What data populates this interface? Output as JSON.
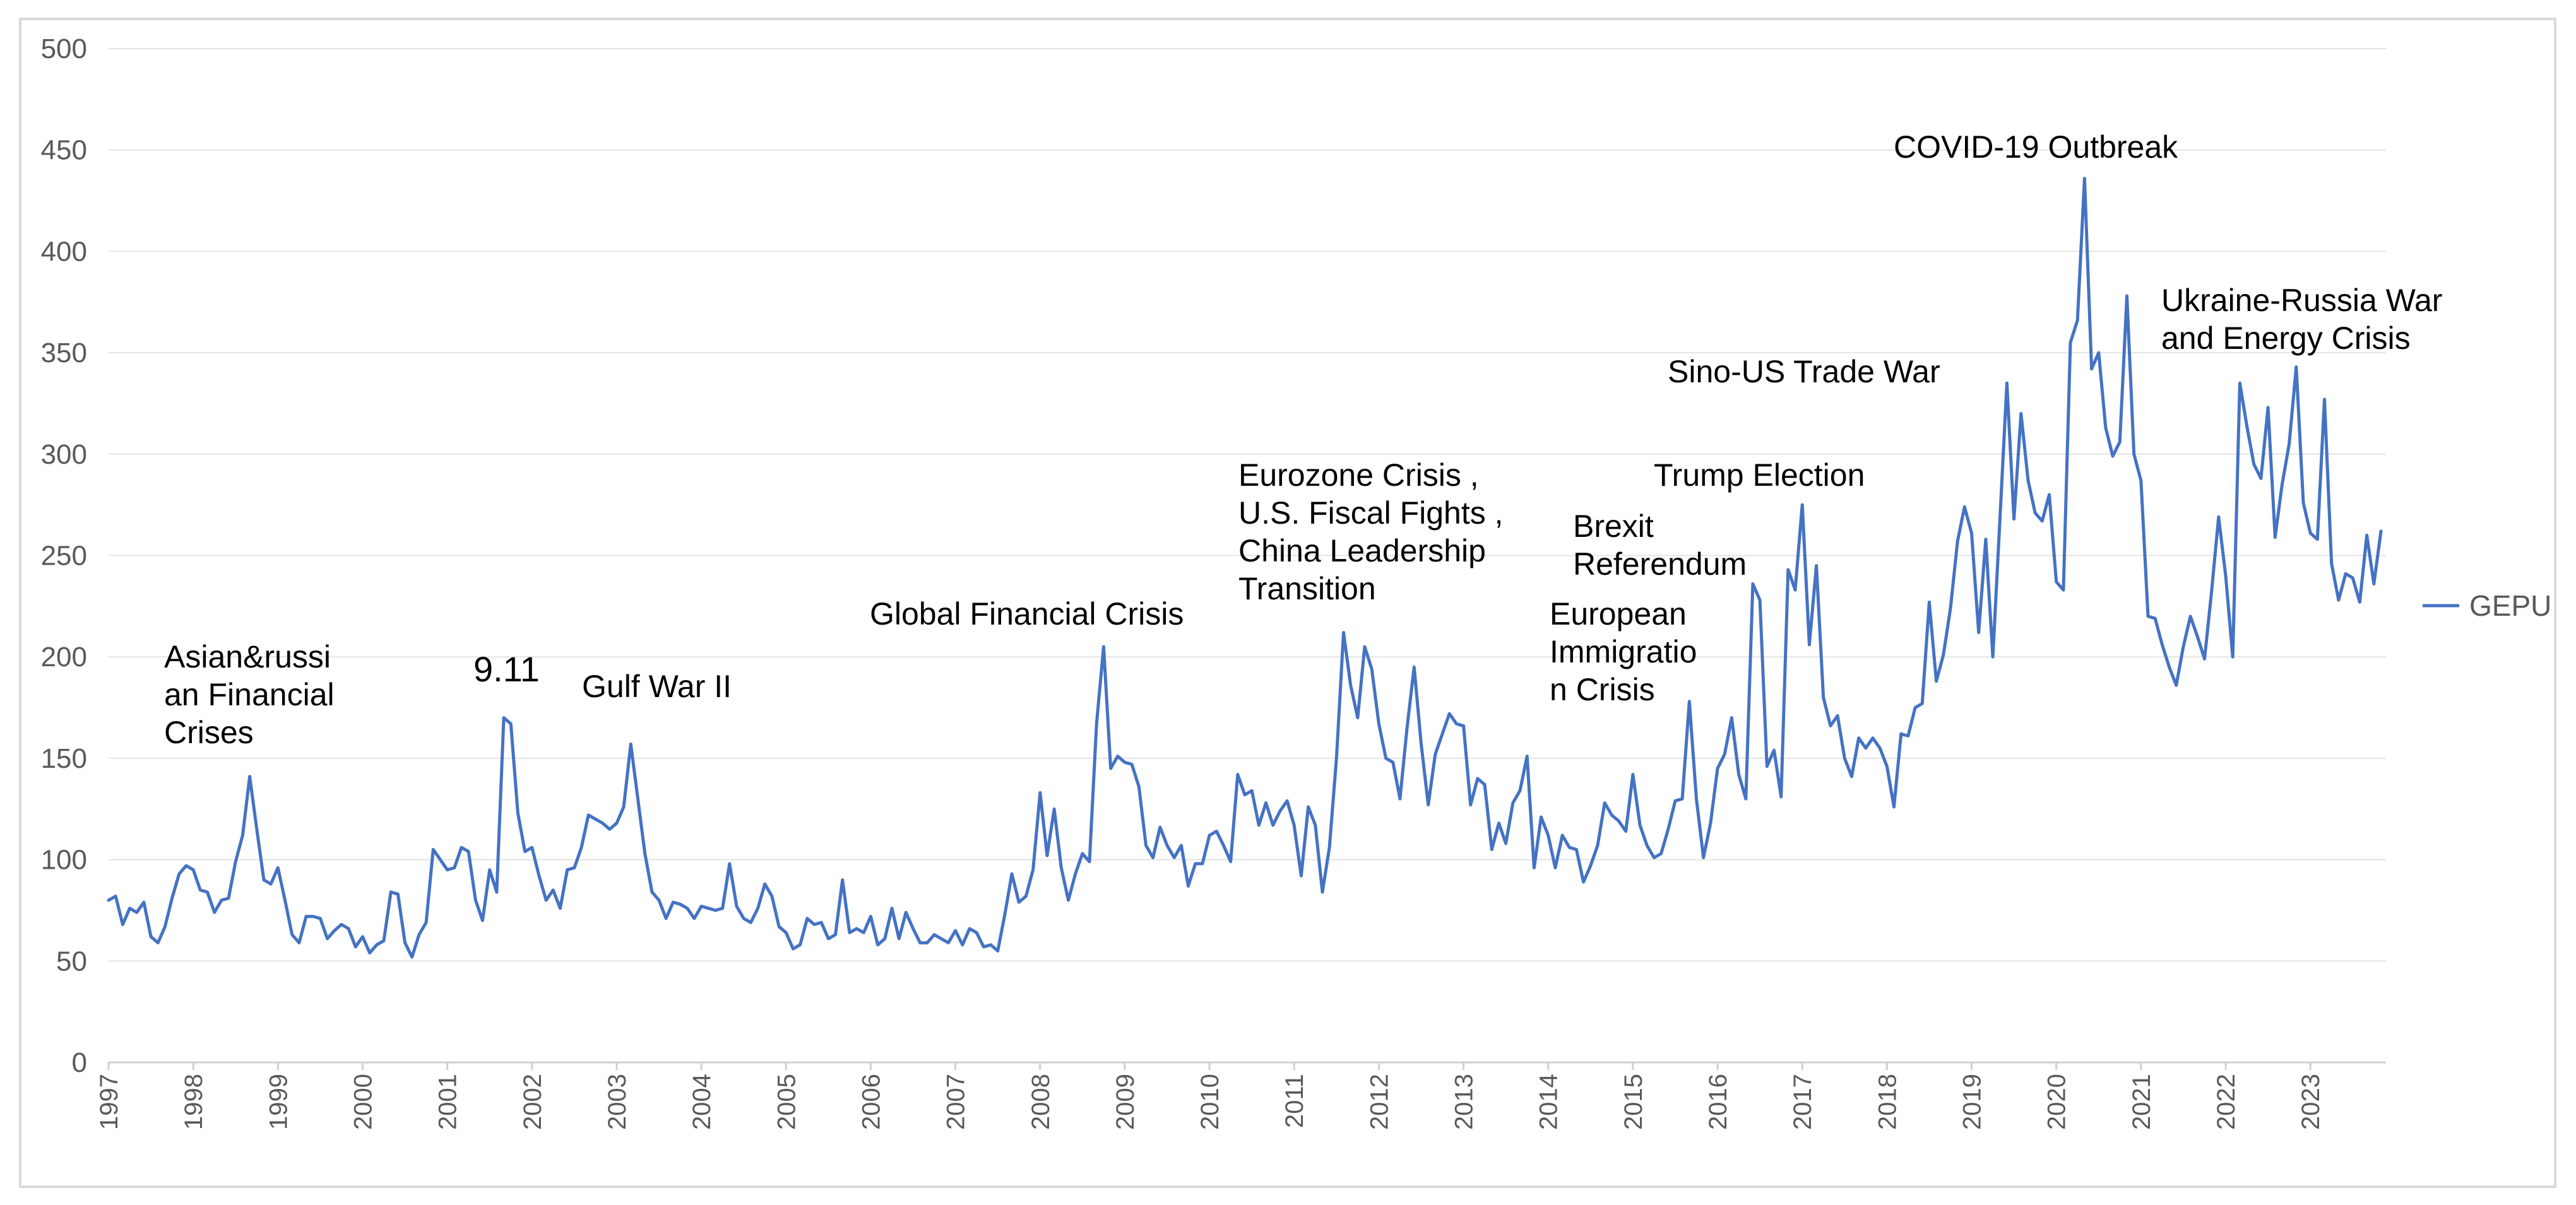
{
  "chart_data": {
    "type": "line",
    "title": "",
    "xlabel": "",
    "ylabel": "",
    "ylim": [
      0,
      500
    ],
    "yticks": [
      0,
      50,
      100,
      150,
      200,
      250,
      300,
      350,
      400,
      450,
      500
    ],
    "xticks": [
      "1997",
      "1998",
      "1999",
      "2000",
      "2001",
      "2002",
      "2003",
      "2004",
      "2005",
      "2006",
      "2007",
      "2008",
      "2009",
      "2010",
      "2011",
      "2012",
      "2013",
      "2014",
      "2015",
      "2016",
      "2017",
      "2018",
      "2019",
      "2020",
      "2021",
      "2022",
      "2023"
    ],
    "grid": true,
    "legend": {
      "position": "right"
    },
    "series": [
      {
        "name": "GEPU",
        "color": "#4472c4",
        "start": "1997-01",
        "frequency": "monthly",
        "values": [
          80,
          82,
          68,
          76,
          74,
          79,
          62,
          59,
          67,
          81,
          93,
          97,
          95,
          85,
          84,
          74,
          80,
          81,
          99,
          112,
          141,
          115,
          90,
          88,
          96,
          80,
          63,
          59,
          72,
          72,
          71,
          61,
          65,
          68,
          66,
          57,
          62,
          54,
          58,
          60,
          84,
          83,
          59,
          52,
          63,
          69,
          105,
          100,
          95,
          96,
          106,
          104,
          80,
          70,
          95,
          84,
          170,
          167,
          123,
          104,
          106,
          92,
          80,
          85,
          76,
          95,
          96,
          106,
          122,
          120,
          118,
          115,
          118,
          126,
          157,
          130,
          103,
          84,
          80,
          71,
          79,
          78,
          76,
          71,
          77,
          76,
          75,
          76,
          98,
          77,
          71,
          69,
          76,
          88,
          82,
          67,
          64,
          56,
          58,
          71,
          68,
          69,
          61,
          63,
          90,
          64,
          66,
          64,
          72,
          58,
          61,
          76,
          61,
          74,
          66,
          59,
          59,
          63,
          61,
          59,
          65,
          58,
          66,
          64,
          57,
          58,
          55,
          73,
          93,
          79,
          82,
          95,
          133,
          102,
          125,
          96,
          80,
          93,
          103,
          99,
          167,
          205,
          145,
          151,
          148,
          147,
          136,
          107,
          101,
          116,
          107,
          101,
          107,
          87,
          98,
          98,
          112,
          114,
          107,
          99,
          142,
          132,
          134,
          117,
          128,
          117,
          124,
          129,
          117,
          92,
          126,
          117,
          84,
          106,
          150,
          212,
          186,
          170,
          205,
          194,
          167,
          150,
          148,
          130,
          165,
          195,
          157,
          127,
          152,
          162,
          172,
          167,
          166,
          127,
          140,
          137,
          105,
          118,
          108,
          128,
          134,
          151,
          96,
          121,
          112,
          96,
          112,
          106,
          105,
          89,
          97,
          107,
          128,
          122,
          119,
          114,
          142,
          117,
          107,
          101,
          103,
          115,
          129,
          130,
          178,
          130,
          101,
          118,
          145,
          152,
          170,
          142,
          130,
          236,
          228,
          146,
          154,
          131,
          243,
          233,
          275,
          206,
          245,
          180,
          166,
          171,
          150,
          141,
          160,
          155,
          160,
          155,
          146,
          126,
          162,
          161,
          175,
          177,
          227,
          188,
          201,
          224,
          257,
          274,
          261,
          212,
          258,
          200,
          267,
          335,
          268,
          320,
          287,
          271,
          267,
          280,
          237,
          233,
          355,
          366,
          436,
          342,
          350,
          313,
          299,
          306,
          378,
          300,
          287,
          220,
          219,
          206,
          195,
          186,
          205,
          220,
          210,
          199,
          232,
          269,
          240,
          200,
          335,
          314,
          295,
          288,
          323,
          259,
          285,
          305,
          343,
          276,
          261,
          258,
          327,
          246,
          228,
          241,
          239,
          227,
          260,
          236,
          262
        ]
      }
    ],
    "annotations": [
      {
        "id": "asian",
        "lines": [
          "Asian&russi",
          "an Financial",
          "Crises"
        ]
      },
      {
        "id": "nine-eleven",
        "lines": [
          "9.11"
        ]
      },
      {
        "id": "gulf-war",
        "lines": [
          "Gulf War II"
        ]
      },
      {
        "id": "gfc",
        "lines": [
          "Global Financial Crisis"
        ]
      },
      {
        "id": "eurozone",
        "lines": [
          "Eurozone Crisis ,",
          "U.S. Fiscal Fights ,",
          "China Leadership",
          "Transition"
        ]
      },
      {
        "id": "european-immigration",
        "lines": [
          "European",
          "Immigratio",
          "n Crisis"
        ]
      },
      {
        "id": "brexit",
        "lines": [
          "Brexit",
          "Referendum"
        ]
      },
      {
        "id": "trump",
        "lines": [
          "Trump Election"
        ]
      },
      {
        "id": "sino-us",
        "lines": [
          "Sino-US Trade War"
        ]
      },
      {
        "id": "covid",
        "lines": [
          "COVID-19 Outbreak"
        ]
      },
      {
        "id": "ukraine",
        "lines": [
          "Ukraine-Russia War",
          "and Energy Crisis"
        ]
      }
    ]
  }
}
